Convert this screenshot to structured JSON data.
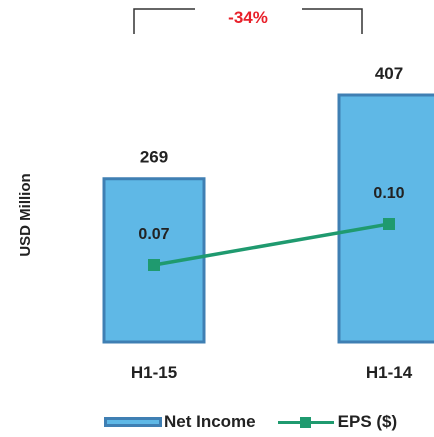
{
  "chart_data": {
    "type": "bar",
    "categories": [
      "H1-15",
      "H1-14"
    ],
    "series": [
      {
        "name": "Net Income",
        "type": "bar",
        "values": [
          269,
          407
        ],
        "labels": [
          "269",
          "407"
        ],
        "color": "#5fb8e6",
        "border": "#3f7fb3"
      },
      {
        "name": "EPS ($)",
        "type": "line",
        "values": [
          0.07,
          0.1
        ],
        "labels": [
          "0.07",
          "0.10"
        ],
        "color": "#1f9a6f"
      }
    ],
    "ylabel": "USD Million",
    "annotation": {
      "text": "-34%",
      "color": "#e8202a"
    }
  },
  "legend": {
    "bar_label": "Net Income",
    "line_label": "EPS ($)"
  }
}
